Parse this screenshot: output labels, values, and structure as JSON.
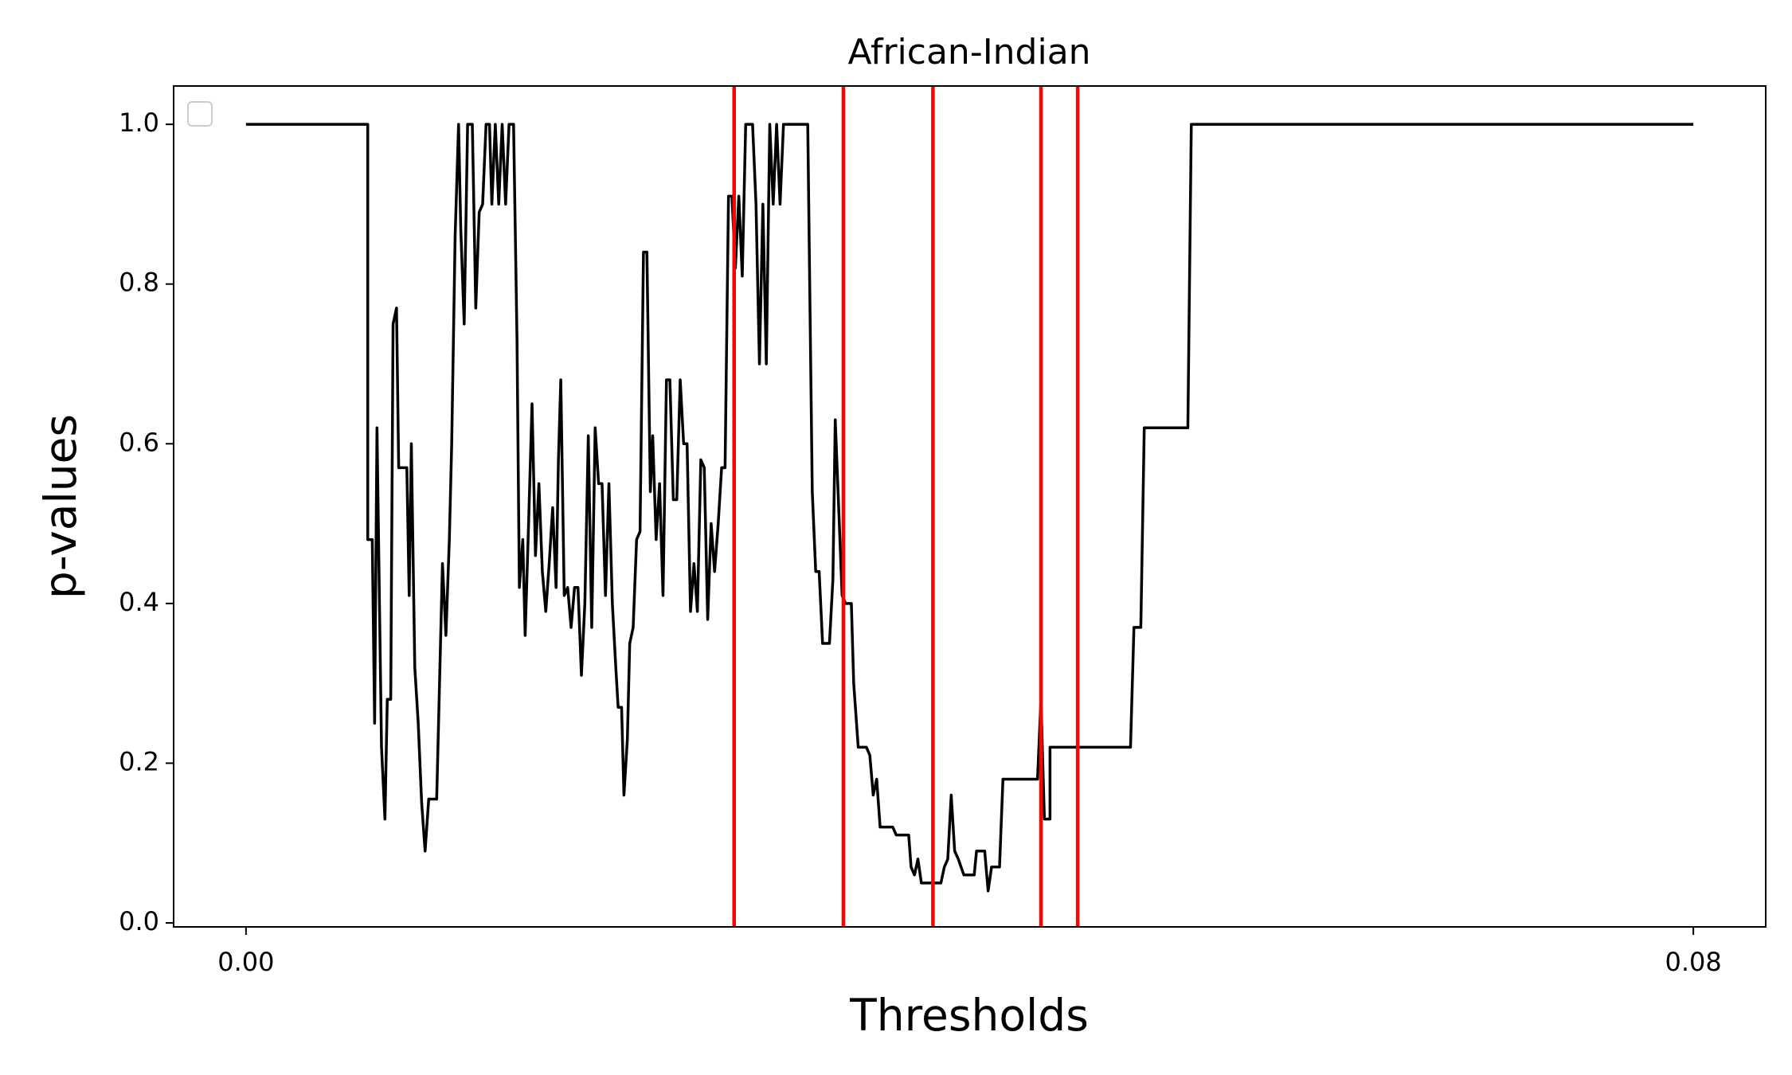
{
  "chart_data": {
    "type": "line",
    "title": "African-Indian",
    "xlabel": "Thresholds",
    "ylabel": "p-values",
    "xlim": [
      -0.004,
      0.084
    ],
    "ylim": [
      -0.005,
      1.048
    ],
    "xticks": [
      {
        "value": 0,
        "label": "0.00"
      },
      {
        "value": 0.08,
        "label": "0.08"
      }
    ],
    "yticks": [
      {
        "value": 0,
        "label": "0.0"
      },
      0.2,
      0.4,
      0.6,
      0.8,
      {
        "value": 1,
        "label": "1.0"
      }
    ],
    "grid": false,
    "x": [
      0,
      0.00673,
      0.00673,
      0.00698,
      0.00711,
      0.00724,
      0.00749,
      0.00768,
      0.00781,
      0.008,
      0.00813,
      0.00832,
      0.00844,
      0.00889,
      0.00902,
      0.00914,
      0.00933,
      0.00952,
      0.00971,
      0.0099,
      0.0101,
      0.01054,
      0.01086,
      0.01105,
      0.01124,
      0.01137,
      0.01156,
      0.01175,
      0.01187,
      0.01206,
      0.01225,
      0.01251,
      0.0127,
      0.01289,
      0.01308,
      0.01327,
      0.01346,
      0.01359,
      0.01378,
      0.01397,
      0.01416,
      0.01435,
      0.01454,
      0.01479,
      0.01498,
      0.01511,
      0.0153,
      0.01543,
      0.01562,
      0.01581,
      0.016,
      0.01619,
      0.01638,
      0.01657,
      0.01676,
      0.01695,
      0.01714,
      0.01727,
      0.0174,
      0.01759,
      0.01778,
      0.01797,
      0.01816,
      0.01835,
      0.01854,
      0.01873,
      0.01892,
      0.01911,
      0.0193,
      0.01949,
      0.01968,
      0.01987,
      0.02006,
      0.02025,
      0.02044,
      0.02057,
      0.02076,
      0.02089,
      0.02108,
      0.02121,
      0.0214,
      0.02159,
      0.02178,
      0.02197,
      0.02216,
      0.02235,
      0.02248,
      0.02267,
      0.02286,
      0.02305,
      0.02324,
      0.02343,
      0.02362,
      0.02381,
      0.024,
      0.02419,
      0.02438,
      0.02457,
      0.02476,
      0.02495,
      0.02514,
      0.02533,
      0.02552,
      0.02571,
      0.0259,
      0.0261,
      0.02629,
      0.02648,
      0.02667,
      0.02686,
      0.02705,
      0.02724,
      0.02743,
      0.02762,
      0.028,
      0.02819,
      0.02838,
      0.02857,
      0.02876,
      0.02895,
      0.02914,
      0.02933,
      0.02952,
      0.02971,
      0.0299,
      0.03105,
      0.0313,
      0.03149,
      0.03168,
      0.03187,
      0.03225,
      0.03244,
      0.03257,
      0.03276,
      0.03295,
      0.03314,
      0.03346,
      0.03359,
      0.03384,
      0.03429,
      0.03448,
      0.03467,
      0.03486,
      0.03505,
      0.03575,
      0.03594,
      0.03663,
      0.03676,
      0.03695,
      0.03714,
      0.03733,
      0.03841,
      0.0386,
      0.03879,
      0.03898,
      0.03917,
      0.03937,
      0.03968,
      0.04025,
      0.04038,
      0.04083,
      0.04102,
      0.04121,
      0.04165,
      0.04184,
      0.04375,
      0.04394,
      0.04413,
      0.04444,
      0.04444,
      0.04889,
      0.04908,
      0.04946,
      0.04965,
      0.05206,
      0.05225,
      0.08
    ],
    "series": [
      {
        "color": "#000000",
        "values": [
          1,
          1,
          0.48,
          0.48,
          0.25,
          0.62,
          0.22,
          0.13,
          0.28,
          0.28,
          0.75,
          0.77,
          0.57,
          0.57,
          0.41,
          0.6,
          0.32,
          0.25,
          0.15,
          0.09,
          0.155,
          0.155,
          0.45,
          0.36,
          0.48,
          0.6,
          0.86,
          1,
          0.87,
          0.75,
          1,
          1,
          0.77,
          0.89,
          0.9,
          1,
          1,
          0.9,
          1,
          0.9,
          1,
          0.9,
          1,
          1,
          0.73,
          0.42,
          0.48,
          0.36,
          0.5,
          0.65,
          0.46,
          0.55,
          0.44,
          0.39,
          0.45,
          0.52,
          0.42,
          0.58,
          0.68,
          0.41,
          0.42,
          0.37,
          0.42,
          0.42,
          0.31,
          0.4,
          0.61,
          0.37,
          0.62,
          0.55,
          0.55,
          0.41,
          0.55,
          0.4,
          0.32,
          0.27,
          0.27,
          0.16,
          0.23,
          0.35,
          0.37,
          0.48,
          0.49,
          0.84,
          0.84,
          0.54,
          0.61,
          0.48,
          0.55,
          0.41,
          0.68,
          0.68,
          0.53,
          0.53,
          0.68,
          0.6,
          0.6,
          0.39,
          0.45,
          0.39,
          0.58,
          0.57,
          0.38,
          0.5,
          0.44,
          0.5,
          0.57,
          0.57,
          0.91,
          0.91,
          0.82,
          0.91,
          0.81,
          1,
          1,
          0.9,
          0.7,
          0.9,
          0.7,
          1,
          0.9,
          1,
          0.9,
          1,
          1,
          1,
          0.54,
          0.44,
          0.44,
          0.35,
          0.35,
          0.43,
          0.63,
          0.52,
          0.41,
          0.4,
          0.4,
          0.3,
          0.22,
          0.22,
          0.21,
          0.16,
          0.18,
          0.12,
          0.12,
          0.11,
          0.11,
          0.07,
          0.06,
          0.08,
          0.05,
          0.05,
          0.07,
          0.08,
          0.16,
          0.09,
          0.08,
          0.06,
          0.06,
          0.09,
          0.09,
          0.04,
          0.07,
          0.07,
          0.18,
          0.18,
          0.28,
          0.13,
          0.13,
          0.22,
          0.22,
          0.37,
          0.37,
          0.62,
          0.62,
          1,
          1
        ]
      }
    ],
    "vlines": {
      "color": "#ff0000",
      "values": [
        0.02698,
        0.03302,
        0.03797,
        0.04394,
        0.04597
      ]
    }
  }
}
